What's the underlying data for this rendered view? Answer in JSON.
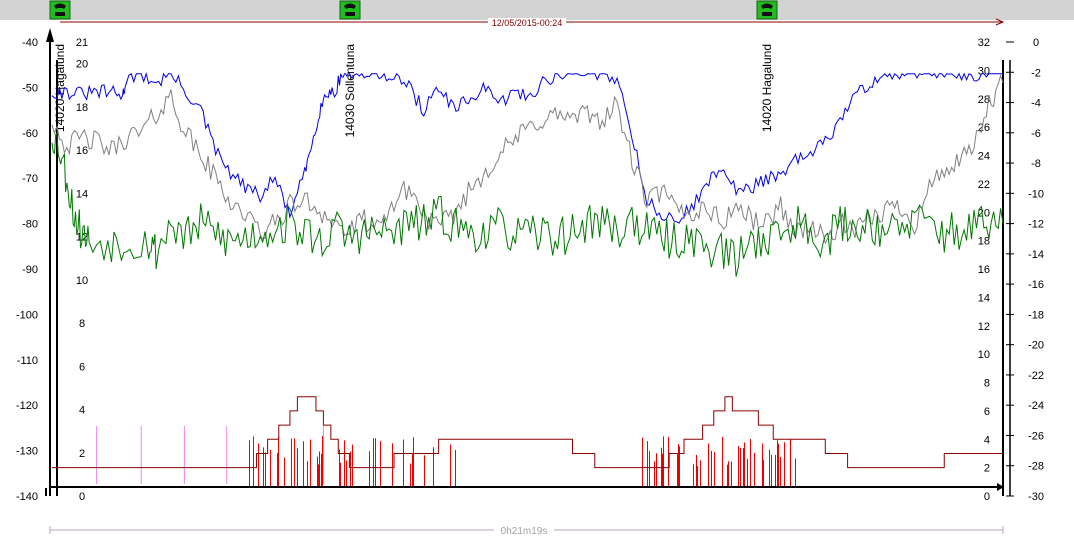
{
  "timestamp": "12/05/2015-00:24",
  "duration": "0h21m19s",
  "colors": {
    "blue": "#0000ee",
    "gray": "#808080",
    "green": "#007700",
    "red": "#ee0000",
    "darkred": "#8b0000",
    "pink": "#ee82ee"
  },
  "events": [
    {
      "x": 60,
      "label": "14020 Hagalund",
      "icon": "phone-icon"
    },
    {
      "x": 350,
      "label": "14030 Sollentuna",
      "icon": "phone-icon"
    },
    {
      "x": 767,
      "label": "14020 Hagalund",
      "icon": "phone-icon"
    }
  ],
  "axes": {
    "left_dbm": {
      "min": -140,
      "max": -40,
      "ticks": [
        -40,
        -50,
        -60,
        -70,
        -80,
        -90,
        -100,
        -110,
        -120,
        -130,
        -140
      ]
    },
    "left_inner": {
      "min": 0,
      "max": 21,
      "ticks": [
        21,
        20,
        18,
        16,
        14,
        12,
        10,
        8,
        6,
        4,
        2,
        0
      ]
    },
    "right_inner": {
      "min": 0,
      "max": 32,
      "ticks": [
        32,
        30,
        28,
        26,
        24,
        22,
        20,
        18,
        16,
        14,
        12,
        10,
        8,
        6,
        4,
        2,
        0
      ]
    },
    "right_outer": {
      "min": -30,
      "max": 0,
      "ticks": [
        0,
        -2,
        -4,
        -6,
        -8,
        -10,
        -12,
        -14,
        -16,
        -18,
        -20,
        -22,
        -24,
        -26,
        -28,
        -30
      ]
    }
  },
  "chart_data": {
    "type": "line",
    "title": "",
    "x_range": [
      0,
      1279
    ],
    "series": [
      {
        "key": "blue",
        "axis": "left_dbm",
        "points": [
          [
            0,
            -51
          ],
          [
            20,
            -51
          ],
          [
            40,
            -51.5
          ],
          [
            60,
            -51
          ],
          [
            80,
            -51
          ],
          [
            95,
            -52
          ],
          [
            100,
            -48
          ],
          [
            120,
            -47
          ],
          [
            140,
            -49
          ],
          [
            160,
            -47
          ],
          [
            180,
            -51
          ],
          [
            200,
            -55
          ],
          [
            220,
            -64
          ],
          [
            240,
            -69
          ],
          [
            260,
            -72
          ],
          [
            280,
            -74
          ],
          [
            300,
            -70
          ],
          [
            320,
            -78
          ],
          [
            340,
            -69
          ],
          [
            350,
            -62
          ],
          [
            360,
            -55
          ],
          [
            370,
            -51
          ],
          [
            380,
            -51
          ],
          [
            390,
            -47
          ],
          [
            400,
            -47
          ],
          [
            420,
            -47
          ],
          [
            440,
            -47
          ],
          [
            460,
            -47
          ],
          [
            480,
            -50
          ],
          [
            500,
            -55
          ],
          [
            520,
            -50
          ],
          [
            540,
            -55
          ],
          [
            560,
            -53
          ],
          [
            580,
            -50
          ],
          [
            600,
            -54
          ],
          [
            620,
            -51
          ],
          [
            640,
            -52
          ],
          [
            660,
            -49
          ],
          [
            680,
            -47
          ],
          [
            700,
            -47
          ],
          [
            720,
            -47
          ],
          [
            740,
            -47
          ],
          [
            760,
            -48
          ],
          [
            780,
            -60
          ],
          [
            800,
            -75
          ],
          [
            820,
            -78
          ],
          [
            840,
            -80
          ],
          [
            860,
            -76
          ],
          [
            880,
            -72
          ],
          [
            900,
            -67
          ],
          [
            920,
            -73
          ],
          [
            940,
            -72
          ],
          [
            960,
            -70
          ],
          [
            980,
            -70
          ],
          [
            1000,
            -66
          ],
          [
            1020,
            -65
          ],
          [
            1040,
            -62
          ],
          [
            1060,
            -57
          ],
          [
            1080,
            -52
          ],
          [
            1100,
            -49
          ],
          [
            1120,
            -47
          ],
          [
            1140,
            -47
          ],
          [
            1160,
            -47
          ],
          [
            1180,
            -47
          ],
          [
            1200,
            -47
          ],
          [
            1220,
            -47
          ],
          [
            1240,
            -47
          ],
          [
            1260,
            -47
          ],
          [
            1279,
            -47
          ]
        ]
      },
      {
        "key": "gray",
        "axis": "left_dbm",
        "points": [
          [
            0,
            -57
          ],
          [
            20,
            -63
          ],
          [
            40,
            -61
          ],
          [
            60,
            -62
          ],
          [
            80,
            -64
          ],
          [
            100,
            -61
          ],
          [
            120,
            -60
          ],
          [
            140,
            -56
          ],
          [
            160,
            -52
          ],
          [
            180,
            -60
          ],
          [
            200,
            -65
          ],
          [
            220,
            -70
          ],
          [
            240,
            -75
          ],
          [
            260,
            -78
          ],
          [
            280,
            -82
          ],
          [
            300,
            -80
          ],
          [
            320,
            -76
          ],
          [
            340,
            -75
          ],
          [
            360,
            -77
          ],
          [
            380,
            -80
          ],
          [
            400,
            -82
          ],
          [
            420,
            -79
          ],
          [
            440,
            -82
          ],
          [
            460,
            -75
          ],
          [
            480,
            -72
          ],
          [
            500,
            -78
          ],
          [
            520,
            -81
          ],
          [
            540,
            -78
          ],
          [
            560,
            -73
          ],
          [
            580,
            -69
          ],
          [
            600,
            -65
          ],
          [
            620,
            -62
          ],
          [
            640,
            -59
          ],
          [
            660,
            -57
          ],
          [
            680,
            -56
          ],
          [
            700,
            -57
          ],
          [
            720,
            -56
          ],
          [
            740,
            -57
          ],
          [
            760,
            -54
          ],
          [
            780,
            -66
          ],
          [
            800,
            -75
          ],
          [
            820,
            -73
          ],
          [
            840,
            -77
          ],
          [
            860,
            -78
          ],
          [
            880,
            -76
          ],
          [
            900,
            -80
          ],
          [
            920,
            -76
          ],
          [
            940,
            -79
          ],
          [
            960,
            -80
          ],
          [
            980,
            -76
          ],
          [
            1000,
            -82
          ],
          [
            1020,
            -80
          ],
          [
            1040,
            -84
          ],
          [
            1060,
            -80
          ],
          [
            1080,
            -82
          ],
          [
            1100,
            -79
          ],
          [
            1120,
            -77
          ],
          [
            1140,
            -76
          ],
          [
            1160,
            -80
          ],
          [
            1180,
            -72
          ],
          [
            1200,
            -68
          ],
          [
            1220,
            -67
          ],
          [
            1240,
            -63
          ],
          [
            1260,
            -54
          ],
          [
            1279,
            -49
          ]
        ]
      },
      {
        "key": "green",
        "axis": "left_dbm",
        "points": [
          [
            0,
            -60
          ],
          [
            10,
            -63
          ],
          [
            20,
            -70
          ],
          [
            30,
            -78
          ],
          [
            40,
            -82
          ],
          [
            50,
            -84
          ],
          [
            80,
            -84
          ],
          [
            100,
            -84
          ],
          [
            130,
            -84
          ],
          [
            140,
            -86
          ],
          [
            160,
            -80
          ],
          [
            180,
            -83
          ],
          [
            200,
            -80
          ],
          [
            220,
            -82
          ],
          [
            240,
            -84
          ],
          [
            260,
            -83
          ],
          [
            280,
            -82
          ],
          [
            300,
            -81
          ],
          [
            320,
            -80
          ],
          [
            340,
            -82
          ],
          [
            360,
            -84
          ],
          [
            380,
            -81
          ],
          [
            400,
            -83
          ],
          [
            420,
            -82
          ],
          [
            440,
            -82
          ],
          [
            460,
            -82
          ],
          [
            480,
            -80
          ],
          [
            500,
            -80
          ],
          [
            520,
            -78
          ],
          [
            540,
            -80
          ],
          [
            560,
            -82
          ],
          [
            580,
            -82
          ],
          [
            600,
            -81
          ],
          [
            620,
            -82
          ],
          [
            640,
            -83
          ],
          [
            660,
            -82
          ],
          [
            680,
            -83
          ],
          [
            700,
            -82
          ],
          [
            720,
            -80
          ],
          [
            740,
            -79
          ],
          [
            760,
            -82
          ],
          [
            780,
            -79
          ],
          [
            800,
            -82
          ],
          [
            820,
            -83
          ],
          [
            840,
            -84
          ],
          [
            860,
            -83
          ],
          [
            880,
            -85
          ],
          [
            900,
            -86
          ],
          [
            920,
            -88
          ],
          [
            940,
            -84
          ],
          [
            960,
            -83
          ],
          [
            980,
            -82
          ],
          [
            1000,
            -80
          ],
          [
            1020,
            -81
          ],
          [
            1040,
            -84
          ],
          [
            1060,
            -80
          ],
          [
            1080,
            -81
          ],
          [
            1100,
            -80
          ],
          [
            1120,
            -81
          ],
          [
            1140,
            -82
          ],
          [
            1160,
            -79
          ],
          [
            1180,
            -80
          ],
          [
            1200,
            -82
          ],
          [
            1220,
            -82
          ],
          [
            1240,
            -80
          ],
          [
            1260,
            -81
          ],
          [
            1279,
            -80
          ]
        ]
      },
      {
        "key": "darkred",
        "axis": "right_inner",
        "points": [
          [
            0,
            2
          ],
          [
            260,
            2
          ],
          [
            275,
            3
          ],
          [
            290,
            4
          ],
          [
            305,
            5
          ],
          [
            320,
            6
          ],
          [
            330,
            7
          ],
          [
            345,
            7
          ],
          [
            355,
            6
          ],
          [
            365,
            5
          ],
          [
            375,
            4
          ],
          [
            385,
            3
          ],
          [
            400,
            2
          ],
          [
            440,
            2
          ],
          [
            460,
            3
          ],
          [
            520,
            4
          ],
          [
            570,
            4
          ],
          [
            640,
            4
          ],
          [
            670,
            4
          ],
          [
            700,
            3
          ],
          [
            730,
            2
          ],
          [
            800,
            2
          ],
          [
            830,
            3
          ],
          [
            850,
            4
          ],
          [
            875,
            5
          ],
          [
            890,
            6
          ],
          [
            905,
            7
          ],
          [
            915,
            6
          ],
          [
            930,
            6
          ],
          [
            950,
            5
          ],
          [
            970,
            4
          ],
          [
            1000,
            4
          ],
          [
            1040,
            3
          ],
          [
            1070,
            2
          ],
          [
            1179,
            2
          ],
          [
            1200,
            3
          ],
          [
            1279,
            3
          ]
        ]
      }
    ],
    "red_spikes": [
      {
        "x_from": 250,
        "x_to": 550,
        "count": 42,
        "seed": 7
      },
      {
        "x_from": 790,
        "x_to": 1010,
        "count": 48,
        "seed": 19
      }
    ],
    "pink_marks": [
      60,
      120,
      178,
      235,
      365
    ]
  }
}
